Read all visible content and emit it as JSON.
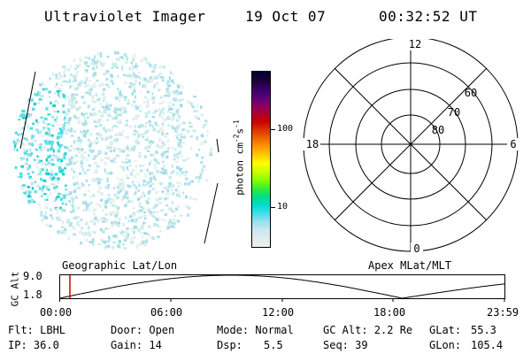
{
  "header": {
    "instrument": "Ultraviolet Imager",
    "date": "19 Oct 07",
    "time": "00:32:52 UT"
  },
  "colorbar": {
    "unit_label": "photon cm",
    "unit_exp1": "-2",
    "unit_mid": "s",
    "unit_exp2": "-1",
    "tick_100": "100",
    "tick_10": "10",
    "colors": [
      "#000033",
      "#1a0033",
      "#330066",
      "#550077",
      "#880066",
      "#aa0033",
      "#cc0000",
      "#dd3300",
      "#ee6600",
      "#ff9900",
      "#ffcc00",
      "#ffff00",
      "#ccff00",
      "#88ff00",
      "#33ee33",
      "#00dd88",
      "#00ddcc",
      "#44ddee",
      "#99e0ee",
      "#cce8ee",
      "#e0ecee",
      "#eeeeee"
    ]
  },
  "image_panel": {
    "type": "uv-auroral-image",
    "dot_colors": [
      "#bfe8ee",
      "#ccecee",
      "#aee0ea",
      "#dff0ef",
      "#e6efe9",
      "#9fdde8"
    ],
    "bright_colors": [
      "#33dddd",
      "#22cccc",
      "#55e0e6",
      "#66d8e0"
    ]
  },
  "polar_grid": {
    "labels": {
      "top": "12",
      "bottom": "0",
      "left": "18",
      "right": "6",
      "r60": "60",
      "r70": "70",
      "r80": "80"
    }
  },
  "altitude_plot": {
    "ylabel": "GC Alt",
    "ymax_label": "9.0",
    "ymin_label": "1.8",
    "left_title": "Geographic Lat/Lon",
    "right_title": "Apex MLat/MLT",
    "xticks": [
      "00:00",
      "06:00",
      "12:00",
      "18:00",
      "23:59"
    ],
    "current_time_marker": "00:32:52",
    "marker_color": "#cc0000"
  },
  "info": {
    "flt": "Flt: LBHL",
    "door": "Door: Open",
    "mode": "Mode: Normal",
    "gcalt": "GC Alt: 2.2 Re",
    "glat_label": "GLat:",
    "glat_value": "55.3",
    "ip": "IP: 36.0",
    "gain": "Gain: 14",
    "dsp_label": "Dsp:",
    "dsp_value": "5.5",
    "seq": "Seq: 39",
    "glon_label": "GLon:",
    "glon_value": "105.4"
  }
}
